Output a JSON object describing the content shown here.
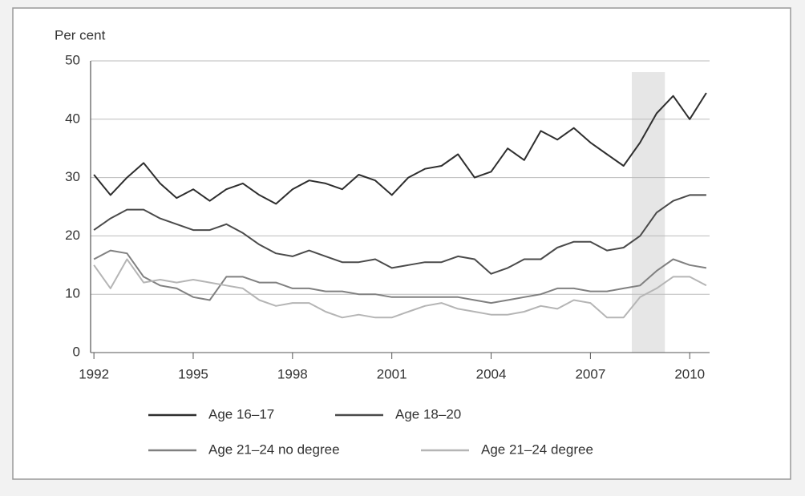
{
  "chart_data": {
    "type": "line",
    "y_axis_label": "Per cent",
    "x": [
      1992,
      1992.5,
      1993,
      1993.5,
      1994,
      1994.5,
      1995,
      1995.5,
      1996,
      1996.5,
      1997,
      1997.5,
      1998,
      1998.5,
      1999,
      1999.5,
      2000,
      2000.5,
      2001,
      2001.5,
      2002,
      2002.5,
      2003,
      2003.5,
      2004,
      2004.5,
      2005,
      2005.5,
      2006,
      2006.5,
      2007,
      2007.5,
      2008,
      2008.5,
      2009,
      2009.5,
      2010,
      2010.5
    ],
    "series": [
      {
        "name": "Age 16–17",
        "color": "#2e2e2e",
        "values": [
          30.5,
          27,
          30,
          32.5,
          29,
          26.5,
          28,
          26,
          28,
          29,
          27,
          25.5,
          28,
          29.5,
          29,
          28,
          30.5,
          29.5,
          27,
          30,
          31.5,
          32,
          34,
          30,
          31,
          35,
          33,
          38,
          36.5,
          38.5,
          36,
          34,
          32,
          36,
          41,
          44,
          40,
          44.5
        ]
      },
      {
        "name": "Age 18–20",
        "color": "#4a4a4a",
        "values": [
          21,
          23,
          24.5,
          24.5,
          23,
          22,
          21,
          21,
          22,
          20.5,
          18.5,
          17,
          16.5,
          17.5,
          16.5,
          15.5,
          15.5,
          16,
          14.5,
          15,
          15.5,
          15.5,
          16.5,
          16,
          13.5,
          14.5,
          16,
          16,
          18,
          19,
          19,
          17.5,
          18,
          20,
          24,
          26,
          27,
          27
        ]
      },
      {
        "name": "Age 21–24 no degree",
        "color": "#808080",
        "values": [
          16,
          17.5,
          17,
          13,
          11.5,
          11,
          9.5,
          9,
          13,
          13,
          12,
          12,
          11,
          11,
          10.5,
          10.5,
          10,
          10,
          9.5,
          9.5,
          9.5,
          9.5,
          9.5,
          9,
          8.5,
          9,
          9.5,
          10,
          11,
          11,
          10.5,
          10.5,
          11,
          11.5,
          14,
          16,
          15,
          14.5
        ]
      },
      {
        "name": "Age 21–24 degree",
        "color": "#b5b5b5",
        "values": [
          15,
          11,
          16,
          12,
          12.5,
          12,
          12.5,
          12,
          11.5,
          11,
          9,
          8,
          8.5,
          8.5,
          7,
          6,
          6.5,
          6,
          6,
          7,
          8,
          8.5,
          7.5,
          7,
          6.5,
          6.5,
          7,
          8,
          7.5,
          9,
          8.5,
          6,
          6,
          9.5,
          11,
          13,
          13,
          11.5
        ]
      }
    ],
    "shaded_x": [
      2008.25,
      2009.25
    ],
    "xlim": [
      1991.9,
      2010.6
    ],
    "xticks": [
      1992,
      1995,
      1998,
      2001,
      2004,
      2007,
      2010
    ],
    "ylim": [
      0,
      50
    ],
    "yticks": [
      0,
      10,
      20,
      30,
      40,
      50
    ],
    "grid": true
  }
}
